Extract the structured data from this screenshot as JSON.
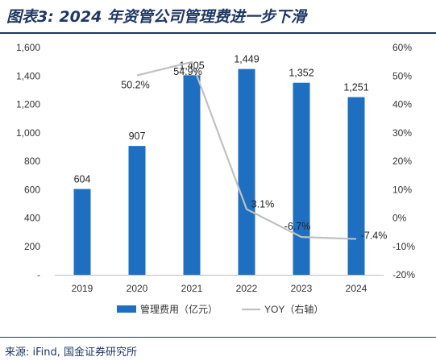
{
  "title": "图表3: 2024 年资管公司管理费进一步下滑",
  "source": "来源: iFind, 国金证券研究所",
  "chart_data": {
    "type": "bar",
    "categories": [
      "2019",
      "2020",
      "2021",
      "2022",
      "2023",
      "2024"
    ],
    "series": [
      {
        "name": "管理费用（亿元）",
        "type": "bar",
        "axis": "left",
        "values": [
          604,
          907,
          1405,
          1449,
          1352,
          1251
        ],
        "labels": [
          "604",
          "907",
          "1,405",
          "1,449",
          "1,352",
          "1,251"
        ],
        "color": "#1f6fc1"
      },
      {
        "name": "YOY（右轴）",
        "type": "line",
        "axis": "right",
        "values": [
          null,
          50.2,
          54.9,
          3.1,
          -6.7,
          -7.4
        ],
        "labels": [
          "",
          "50.2%",
          "54.9%",
          "3.1%",
          "-6.7%",
          "-7.4%"
        ],
        "color": "#c0c0c0"
      }
    ],
    "y_left": {
      "ylim": [
        0,
        1600
      ],
      "ticks": [
        0,
        200,
        400,
        600,
        800,
        1000,
        1200,
        1400,
        1600
      ],
      "tick_labels": [
        "-",
        "200",
        "400",
        "600",
        "800",
        "1,000",
        "1,200",
        "1,400",
        "1,600"
      ]
    },
    "y_right": {
      "ylim": [
        -20,
        60
      ],
      "ticks": [
        -20,
        -10,
        0,
        10,
        20,
        30,
        40,
        50,
        60
      ],
      "tick_labels": [
        "-20%",
        "-10%",
        "0%",
        "10%",
        "20%",
        "30%",
        "40%",
        "50%",
        "60%"
      ]
    },
    "legend_position": "bottom",
    "grid": false
  }
}
